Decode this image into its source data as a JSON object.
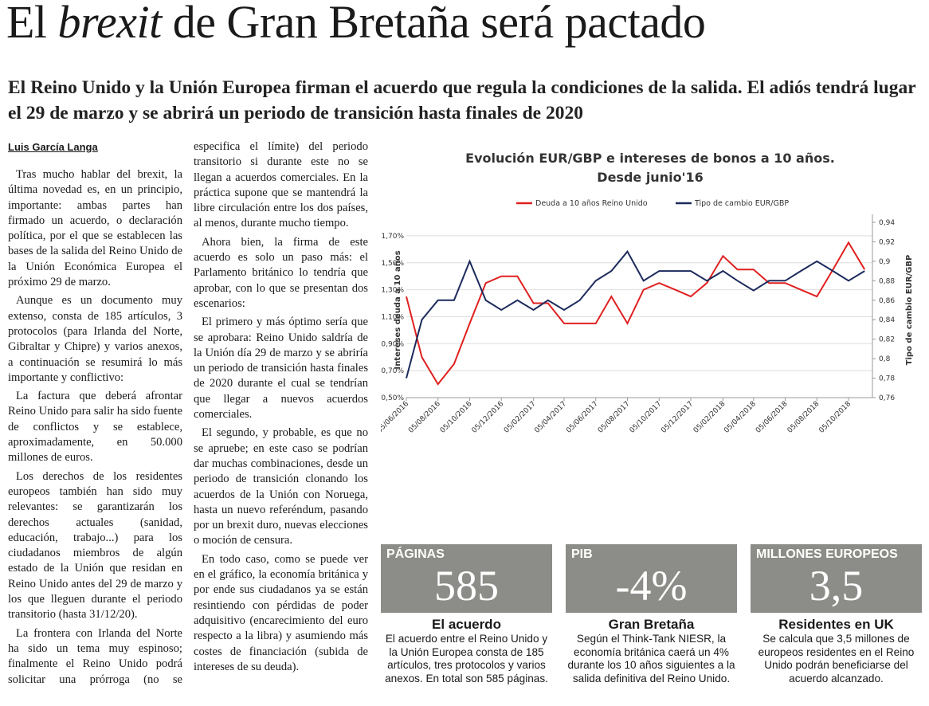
{
  "header": {
    "title": [
      "El",
      "brexit",
      "de Gran Bretaña será pactado"
    ],
    "subtitle": "El Reino Unido y la Unión Europea firman el acuerdo que regula la condiciones de la salida. El adiós tendrá lugar el 29 de marzo y se abrirá un periodo de transición hasta finales de 2020"
  },
  "article": {
    "byline": "Luis García Langa",
    "paragraphs": [
      "Tras mucho hablar del brexit, la última novedad es, en un principio, importante: ambas partes han firmado un acuerdo, o declaración política, por el que se establecen las bases de la salida del Reino Unido de la Unión Económica Europea el próximo 29 de marzo.",
      "Aunque es un documento muy extenso, consta de 185 artículos, 3 protocolos (para Irlanda del Norte, Gibraltar y Chipre) y varios anexos, a continuación se resumirá lo más importante y conflictivo:",
      "La factura que deberá afrontar Reino Unido para salir ha sido fuente de conflictos y se establece, aproximadamente, en 50.000 millones de euros.",
      "Los derechos de los residentes europeos también han sido muy relevantes: se garantizarán los derechos actuales (sanidad, educación, trabajo...) para los ciudadanos miembros de algún estado de la Unión que residan en Reino Unido antes del 29 de marzo y los que lleguen durante el periodo transitorio (hasta 31/12/20).",
      "La frontera con Irlanda del Norte ha sido un tema muy espinoso; finalmente el Reino Unido podrá solicitar una prórroga (no se especifica el límite) del periodo transitorio si durante este no se llegan a acuerdos comerciales. En la práctica supone que se mantendrá la libre circulación entre los dos países, al menos, durante mucho tiempo.",
      "Ahora bien, la firma de este acuerdo es solo un paso más: el Parlamento británico lo tendría que aprobar, con lo que se presentan dos escenarios:",
      "El primero y más óptimo sería que se aprobara: Reino Unido saldría de la Unión día 29 de marzo y se abriría un periodo de transición hasta finales de 2020 durante el cual se tendrían que llegar a nuevos acuerdos comerciales.",
      "El segundo, y probable, es que no se apruebe; en este caso se podrían dar muchas combinaciones, desde un periodo de transición clonando los acuerdos de la Unión con Noruega, hasta un nuevo referéndum, pasando por un brexit duro, nuevas elecciones o moción de censura.",
      "En todo caso, como se puede ver en el gráfico, la economía británica y por ende sus ciudadanos ya se están resintiendo con pérdidas de poder adquisitivo (encarecimiento del euro respecto a la libra) y asumiendo más costes de financiación (subida de intereses de su deuda)."
    ]
  },
  "chart_data": {
    "type": "line",
    "title": [
      "Evolución EUR/GBP e intereses de bonos a 10 años.",
      "Desde junio'16"
    ],
    "y_label": "Intereses deuda a 10 años",
    "y2_label": "Tipo de cambio EUR/GBP",
    "legend": "top",
    "x": [
      "05/06/2016",
      "05/07/2016",
      "05/08/2016",
      "05/09/2016",
      "05/10/2016",
      "05/11/2016",
      "05/12/2016",
      "05/01/2017",
      "05/02/2017",
      "05/03/2017",
      "05/04/2017",
      "05/05/2017",
      "05/06/2017",
      "05/07/2017",
      "05/08/2017",
      "05/09/2017",
      "05/10/2017",
      "05/11/2017",
      "05/12/2017",
      "05/01/2018",
      "05/02/2018",
      "05/03/2018",
      "05/04/2018",
      "05/05/2018",
      "05/06/2018",
      "05/07/2018",
      "05/08/2018",
      "05/09/2018",
      "05/10/2018",
      "05/11/2018"
    ],
    "xlim": [
      "05/06/2016",
      "20/11/2018"
    ],
    "xticks": [
      "05/06/2016",
      "05/08/2016",
      "05/10/2016",
      "05/12/2016",
      "05/02/2017",
      "05/04/2017",
      "05/06/2017",
      "05/08/2017",
      "05/10/2017",
      "05/12/2017",
      "05/02/2018",
      "05/04/2018",
      "05/06/2018",
      "05/08/2018",
      "05/10/2018"
    ],
    "ylim": [
      0.5,
      1.8
    ],
    "yticks": [
      {
        "value": 0.5,
        "label": "0,50%"
      },
      {
        "value": 0.7,
        "label": "0,70%"
      },
      {
        "value": 0.9,
        "label": "0,90%"
      },
      {
        "value": 1.1,
        "label": "1,10%"
      },
      {
        "value": 1.3,
        "label": "1,30%"
      },
      {
        "value": 1.5,
        "label": "1,50%"
      },
      {
        "value": 1.7,
        "label": "1,70%"
      }
    ],
    "y2lim": [
      0.76,
      0.94
    ],
    "y2ticks": [
      {
        "value": 0.76,
        "label": "0,76"
      },
      {
        "value": 0.78,
        "label": "0,78"
      },
      {
        "value": 0.8,
        "label": "0,8"
      },
      {
        "value": 0.82,
        "label": "0,82"
      },
      {
        "value": 0.84,
        "label": "0,84"
      },
      {
        "value": 0.86,
        "label": "0,86"
      },
      {
        "value": 0.88,
        "label": "0,88"
      },
      {
        "value": 0.9,
        "label": "0,9"
      },
      {
        "value": 0.92,
        "label": "0,92"
      },
      {
        "value": 0.94,
        "label": "0,94"
      }
    ],
    "series": [
      {
        "name": "Deuda a 10 años Reino Unido",
        "color": "#e02020",
        "values": [
          1.25,
          0.8,
          0.6,
          0.75,
          1.05,
          1.35,
          1.4,
          1.4,
          1.2,
          1.2,
          1.05,
          1.05,
          1.05,
          1.25,
          1.05,
          1.3,
          1.35,
          1.3,
          1.25,
          1.35,
          1.55,
          1.45,
          1.45,
          1.35,
          1.35,
          1.3,
          1.25,
          1.45,
          1.65,
          1.45
        ]
      },
      {
        "name": "Tipo de cambio EUR/GBP",
        "color": "#1c2a5c",
        "axis": "y2",
        "values": [
          0.78,
          0.84,
          0.86,
          0.86,
          0.9,
          0.86,
          0.85,
          0.86,
          0.85,
          0.86,
          0.85,
          0.86,
          0.88,
          0.89,
          0.91,
          0.88,
          0.89,
          0.89,
          0.89,
          0.88,
          0.89,
          0.88,
          0.87,
          0.88,
          0.88,
          0.89,
          0.9,
          0.89,
          0.88,
          0.89
        ]
      }
    ]
  },
  "stats": [
    {
      "label": "PÁGINAS",
      "value": "585",
      "heading": "El acuerdo",
      "text": "El acuerdo entre el Reino Unido y la Unión Europea consta de 185 artículos, tres protocolos y varios anexos. En total son 585 páginas."
    },
    {
      "label": "PIB",
      "value": "-4%",
      "heading": "Gran Bretaña",
      "text": "Según el Think-Tank NIESR, la economía británica caerá un 4% durante los 10 años siguientes a la salida definitiva del Reino Unido."
    },
    {
      "label": "MILLONES EUROPEOS",
      "value": "3,5",
      "heading": "Residentes en UK",
      "text": "Se calcula que 3,5 millones de europeos residentes en el Reino Unido podrán beneficiarse del acuerdo alcanzado."
    }
  ]
}
